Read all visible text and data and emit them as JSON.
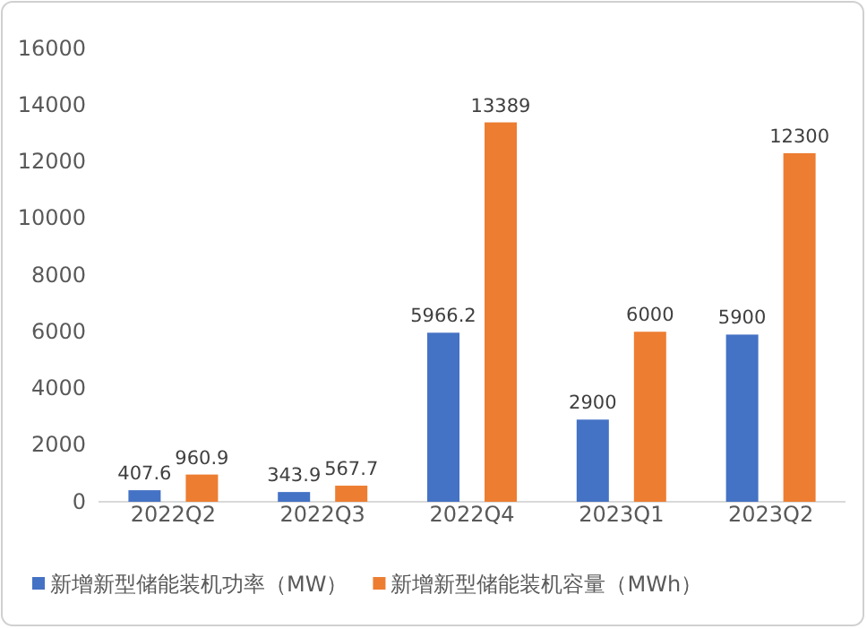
{
  "chart_data": {
    "type": "bar",
    "categories": [
      "2022Q2",
      "2022Q3",
      "2022Q4",
      "2023Q1",
      "2023Q2"
    ],
    "series": [
      {
        "name": "新增新型储能装机功率（MW）",
        "color": "#4472c4",
        "values": [
          407.6,
          343.9,
          5966.2,
          2900,
          5900
        ]
      },
      {
        "name": "新增新型储能装机容量（MWh）",
        "color": "#ed7d31",
        "values": [
          960.9,
          567.7,
          13389,
          6000,
          12300
        ]
      }
    ],
    "ylim": [
      0,
      16000
    ],
    "yticks": [
      0,
      2000,
      4000,
      6000,
      8000,
      10000,
      12000,
      14000,
      16000
    ],
    "grid": false,
    "legend": "bottom",
    "data_labels": true
  }
}
